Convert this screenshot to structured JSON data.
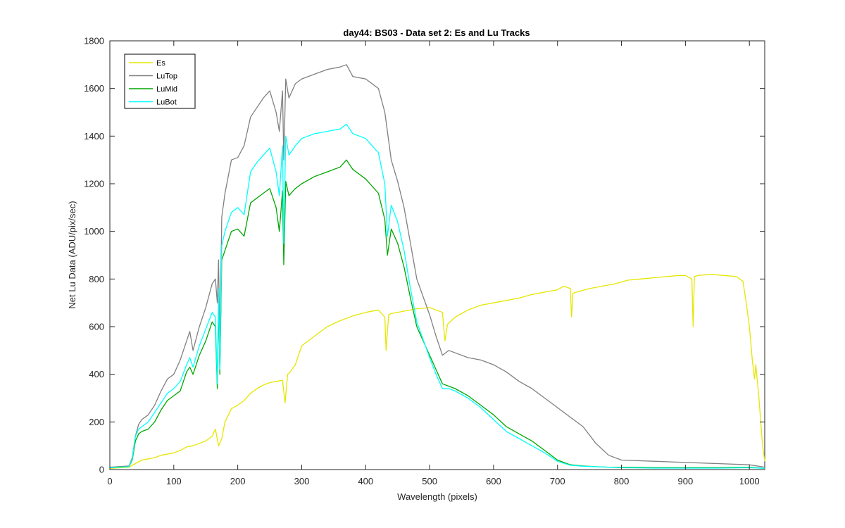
{
  "chart_data": {
    "type": "line",
    "title": "day44: BS03 - Data set 2: Es and Lu Tracks",
    "xlabel": "Wavelength (pixels)",
    "ylabel": "Net Lu Data (ADU/pix/sec)",
    "xlim": [
      0,
      1024
    ],
    "ylim": [
      0,
      1800
    ],
    "xticks": [
      "0",
      "100",
      "200",
      "300",
      "400",
      "500",
      "600",
      "700",
      "800",
      "900",
      "1000"
    ],
    "yticks": [
      "0",
      "200",
      "400",
      "600",
      "800",
      "1000",
      "1200",
      "1400",
      "1600",
      "1800"
    ],
    "grid": false,
    "legend_position": "top-left",
    "series": [
      {
        "name": "Es",
        "color": "#e6e600",
        "x": [
          0,
          30,
          40,
          50,
          60,
          70,
          80,
          100,
          110,
          120,
          130,
          140,
          150,
          160,
          165,
          170,
          175,
          180,
          190,
          200,
          210,
          220,
          230,
          240,
          250,
          260,
          270,
          274,
          278,
          282,
          290,
          300,
          320,
          340,
          360,
          380,
          400,
          420,
          430,
          432,
          436,
          440,
          460,
          480,
          500,
          510,
          520,
          524,
          528,
          540,
          560,
          580,
          600,
          620,
          640,
          660,
          680,
          700,
          710,
          720,
          722,
          724,
          730,
          750,
          770,
          790,
          810,
          830,
          850,
          870,
          890,
          900,
          910,
          912,
          914,
          920,
          940,
          960,
          980,
          990,
          995,
          1000,
          1005,
          1008,
          1010,
          1015,
          1020,
          1024
        ],
        "y": [
          5,
          10,
          25,
          40,
          45,
          50,
          60,
          70,
          80,
          95,
          100,
          110,
          120,
          140,
          170,
          100,
          130,
          200,
          255,
          270,
          290,
          320,
          340,
          355,
          365,
          370,
          375,
          280,
          400,
          410,
          440,
          520,
          560,
          600,
          625,
          645,
          660,
          670,
          640,
          500,
          650,
          655,
          665,
          675,
          680,
          670,
          660,
          540,
          610,
          640,
          670,
          690,
          700,
          710,
          720,
          735,
          745,
          755,
          770,
          760,
          640,
          740,
          745,
          760,
          770,
          780,
          795,
          800,
          805,
          810,
          815,
          815,
          800,
          600,
          810,
          815,
          820,
          815,
          810,
          790,
          700,
          600,
          450,
          380,
          440,
          300,
          120,
          35
        ]
      },
      {
        "name": "LuTop",
        "color": "#808080",
        "x": [
          0,
          30,
          35,
          40,
          45,
          50,
          60,
          70,
          80,
          90,
          100,
          110,
          120,
          125,
          130,
          140,
          150,
          160,
          165,
          168,
          170,
          172,
          175,
          180,
          190,
          200,
          210,
          220,
          230,
          240,
          250,
          260,
          265,
          270,
          272,
          275,
          280,
          290,
          300,
          320,
          340,
          360,
          370,
          380,
          400,
          420,
          430,
          440,
          450,
          460,
          470,
          480,
          500,
          510,
          520,
          530,
          540,
          560,
          580,
          600,
          620,
          640,
          660,
          680,
          700,
          720,
          740,
          760,
          780,
          800,
          850,
          900,
          950,
          1000,
          1024
        ],
        "y": [
          10,
          15,
          50,
          140,
          190,
          210,
          230,
          270,
          330,
          380,
          400,
          460,
          540,
          580,
          500,
          600,
          680,
          780,
          800,
          700,
          880,
          520,
          1060,
          1160,
          1300,
          1310,
          1360,
          1480,
          1520,
          1560,
          1590,
          1500,
          1420,
          1590,
          1300,
          1640,
          1560,
          1620,
          1640,
          1660,
          1680,
          1690,
          1700,
          1650,
          1640,
          1600,
          1500,
          1300,
          1210,
          1100,
          950,
          800,
          650,
          560,
          480,
          500,
          490,
          470,
          460,
          440,
          410,
          370,
          340,
          300,
          260,
          220,
          180,
          110,
          60,
          40,
          35,
          30,
          25,
          20,
          10
        ]
      },
      {
        "name": "LuMid",
        "color": "#00a600",
        "x": [
          0,
          30,
          35,
          40,
          45,
          50,
          60,
          70,
          80,
          90,
          100,
          110,
          120,
          125,
          130,
          140,
          150,
          160,
          165,
          168,
          170,
          172,
          175,
          180,
          190,
          200,
          210,
          220,
          230,
          240,
          250,
          260,
          265,
          270,
          272,
          275,
          280,
          290,
          300,
          320,
          340,
          360,
          370,
          380,
          400,
          420,
          430,
          434,
          440,
          450,
          460,
          470,
          480,
          500,
          510,
          520,
          530,
          540,
          560,
          580,
          600,
          620,
          640,
          660,
          680,
          700,
          720,
          740,
          760,
          780,
          800,
          850,
          900,
          950,
          1000,
          1024
        ],
        "y": [
          8,
          12,
          40,
          120,
          150,
          160,
          170,
          200,
          250,
          290,
          310,
          330,
          410,
          430,
          400,
          480,
          540,
          620,
          600,
          340,
          720,
          400,
          880,
          920,
          1000,
          1010,
          980,
          1120,
          1140,
          1160,
          1180,
          1100,
          1000,
          1170,
          860,
          1210,
          1150,
          1180,
          1200,
          1230,
          1250,
          1270,
          1300,
          1260,
          1220,
          1160,
          1050,
          900,
          1010,
          950,
          850,
          720,
          600,
          480,
          420,
          360,
          350,
          340,
          310,
          270,
          230,
          180,
          150,
          120,
          80,
          40,
          20,
          15,
          12,
          10,
          10,
          8,
          8,
          8,
          10,
          5
        ]
      },
      {
        "name": "LuBot",
        "color": "#00ffff",
        "x": [
          0,
          30,
          35,
          40,
          45,
          50,
          60,
          70,
          80,
          90,
          100,
          110,
          120,
          125,
          130,
          140,
          150,
          160,
          165,
          168,
          170,
          172,
          175,
          180,
          190,
          200,
          210,
          220,
          230,
          240,
          250,
          260,
          265,
          270,
          272,
          275,
          280,
          290,
          300,
          320,
          340,
          360,
          370,
          380,
          400,
          420,
          430,
          434,
          440,
          450,
          460,
          470,
          480,
          500,
          510,
          520,
          530,
          540,
          560,
          580,
          600,
          620,
          640,
          660,
          680,
          700,
          720,
          740,
          760,
          780,
          800,
          850,
          900,
          950,
          1000,
          1024
        ],
        "y": [
          8,
          12,
          45,
          140,
          170,
          180,
          200,
          240,
          280,
          320,
          340,
          370,
          440,
          470,
          430,
          520,
          590,
          660,
          640,
          360,
          760,
          420,
          940,
          1000,
          1080,
          1100,
          1070,
          1250,
          1290,
          1320,
          1350,
          1250,
          1150,
          1360,
          950,
          1400,
          1320,
          1360,
          1390,
          1410,
          1420,
          1430,
          1450,
          1410,
          1390,
          1330,
          1200,
          980,
          1110,
          1040,
          920,
          760,
          620,
          470,
          400,
          340,
          340,
          330,
          300,
          260,
          210,
          160,
          130,
          100,
          70,
          35,
          18,
          14,
          12,
          10,
          8,
          6,
          6,
          6,
          8,
          5
        ]
      }
    ]
  }
}
